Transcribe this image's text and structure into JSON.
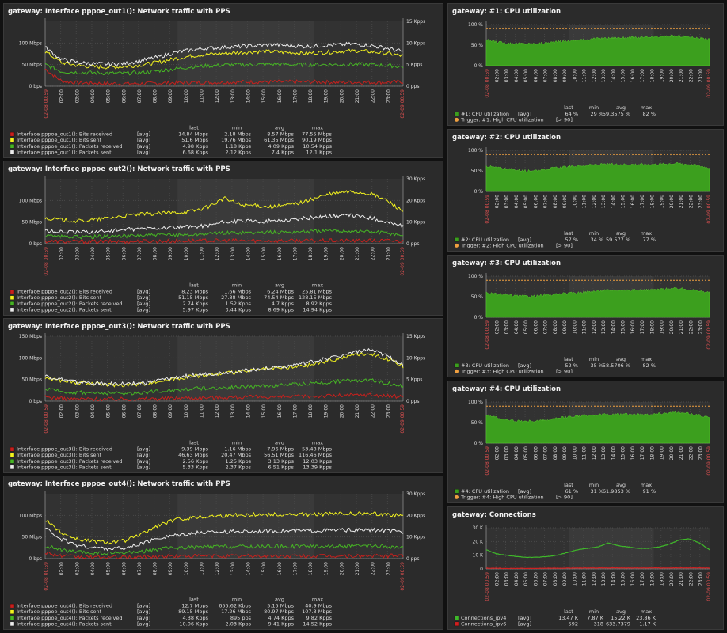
{
  "colors": {
    "received": "#c8201d",
    "sent": "#f2f21e",
    "packets_received": "#46b424",
    "packets_sent": "#ececec",
    "cpu": "#3c9f1e",
    "trigger": "#f0a040",
    "ipv4": "#3fb82a",
    "ipv6": "#d02020",
    "time_edge": "#e05050"
  },
  "x_ticks": [
    "02:00",
    "03:00",
    "04:00",
    "05:00",
    "06:00",
    "07:00",
    "08:00",
    "09:00",
    "10:00",
    "11:00",
    "12:00",
    "13:00",
    "14:00",
    "15:00",
    "16:00",
    "17:00",
    "18:00",
    "19:00",
    "20:00",
    "21:00",
    "22:00",
    "23:00"
  ],
  "x_start": "02-08 00:59",
  "x_end": "02-09 00:59",
  "stat_headers": [
    "last",
    "min",
    "avg",
    "max"
  ],
  "chart_data": [
    {
      "type": "line",
      "title": "gateway: Interface pppoe_out1(): Network traffic with PPS",
      "y_left_ticks": [
        "0 bps",
        "50 Mbps",
        "100 Mbps"
      ],
      "y_left_max": 150,
      "y_right_ticks": [
        "0 pps",
        "5 Kpps",
        "10 Kpps",
        "15 Kpps"
      ],
      "y_right_max": 15,
      "series": [
        {
          "name": "Interface pppoe_out1(): Bits received",
          "func": "[avg]",
          "last": "14.84 Mbps",
          "min": "2.18 Mbps",
          "avg": "8.57 Mbps",
          "max": "77.55 Mbps",
          "axis": "left",
          "values": [
            40,
            12,
            8,
            7,
            6,
            6,
            6,
            7,
            8,
            9,
            9,
            9,
            10,
            10,
            10,
            10,
            10,
            10,
            9,
            9,
            9,
            9,
            10
          ]
        },
        {
          "name": "Interface pppoe_out1(): Bits sent",
          "func": "[avg]",
          "last": "51.6 Mbps",
          "min": "19.76 Mbps",
          "avg": "61.35 Mbps",
          "max": "90.19 Mbps",
          "axis": "left",
          "values": [
            80,
            55,
            48,
            45,
            44,
            46,
            50,
            56,
            64,
            70,
            74,
            76,
            78,
            80,
            80,
            78,
            76,
            78,
            80,
            82,
            80,
            76,
            70
          ]
        },
        {
          "name": "Interface pppoe_out1(): Packets received",
          "func": "[avg]",
          "last": "4.98 Kpps",
          "min": "1.18 Kpps",
          "avg": "4.09 Kpps",
          "max": "10.54 Kpps",
          "axis": "right",
          "values": [
            5,
            3.4,
            3.2,
            3.1,
            3,
            3,
            3.2,
            3.6,
            4,
            4.5,
            4.7,
            4.9,
            5,
            5,
            5.1,
            5,
            5,
            5,
            5,
            5.1,
            5,
            4.8,
            4.5
          ]
        },
        {
          "name": "Interface pppoe_out1(): Packets sent",
          "func": "[avg]",
          "last": "6.68 Kpps",
          "min": "2.12 Kpps",
          "avg": "7.4 Kpps",
          "max": "12.1 Kpps",
          "axis": "right",
          "values": [
            9,
            6.2,
            5.5,
            5.2,
            5.1,
            5.3,
            6,
            6.8,
            7.8,
            8.4,
            8.8,
            9,
            9.2,
            9.4,
            9.6,
            9.4,
            9.2,
            9.4,
            9.6,
            9.8,
            9.4,
            8.8,
            8
          ]
        }
      ]
    },
    {
      "type": "line",
      "title": "gateway: Interface pppoe_out2(): Network traffic with PPS",
      "y_left_ticks": [
        "0 bps",
        "50 Mbps",
        "100 Mbps"
      ],
      "y_left_max": 150,
      "y_right_ticks": [
        "0 pps",
        "10 Kpps",
        "20 Kpps",
        "30 Kpps"
      ],
      "y_right_max": 30,
      "series": [
        {
          "name": "Interface pppoe_out2(): Bits received",
          "func": "[avg]",
          "last": "8.23 Mbps",
          "min": "1.66 Mbps",
          "avg": "6.24 Mbps",
          "max": "25.81 Mbps",
          "axis": "left",
          "values": [
            6,
            5,
            5,
            5,
            5,
            5,
            6,
            6,
            6,
            7,
            7,
            7,
            7,
            7,
            7,
            7,
            7,
            7,
            7,
            7,
            7,
            7,
            6
          ]
        },
        {
          "name": "Interface pppoe_out2(): Bits sent",
          "func": "[avg]",
          "last": "51.15 Mbps",
          "min": "27.88 Mbps",
          "avg": "74.54 Mbps",
          "max": "128.15 Mbps",
          "axis": "left",
          "values": [
            60,
            55,
            52,
            55,
            60,
            65,
            68,
            70,
            72,
            75,
            85,
            105,
            90,
            88,
            85,
            90,
            98,
            110,
            118,
            120,
            115,
            100,
            75
          ]
        },
        {
          "name": "Interface pppoe_out2(): Packets received",
          "func": "[avg]",
          "last": "2.74 Kpps",
          "min": "1.52 Kpps",
          "avg": "4.7 Kpps",
          "max": "8.92 Kpps",
          "axis": "right",
          "values": [
            3.5,
            3.2,
            3.1,
            3.2,
            3.4,
            3.6,
            3.8,
            4,
            4.1,
            4.2,
            4.6,
            5,
            5.2,
            5.1,
            5.2,
            5.4,
            5.6,
            5.8,
            6,
            5.9,
            5.6,
            5,
            4
          ]
        },
        {
          "name": "Interface pppoe_out2(): Packets sent",
          "func": "[avg]",
          "last": "5.97 Kpps",
          "min": "3.44 Kpps",
          "avg": "8.69 Kpps",
          "max": "14.94 Kpps",
          "axis": "right",
          "values": [
            6,
            5.5,
            5.3,
            5.5,
            6,
            6.5,
            7,
            7.3,
            7.5,
            7.8,
            8.5,
            10,
            10.5,
            10.3,
            10.5,
            11,
            11.8,
            12.5,
            13,
            13,
            12,
            10,
            8
          ]
        }
      ]
    },
    {
      "type": "line",
      "title": "gateway: Interface pppoe_out3(): Network traffic with PPS",
      "y_left_ticks": [
        "0 bps",
        "50 Mbps",
        "100 Mbps",
        "150 Mbps"
      ],
      "y_left_max": 150,
      "y_right_ticks": [
        "0 pps",
        "5 Kpps",
        "10 Kpps",
        "15 Kpps"
      ],
      "y_right_max": 15,
      "series": [
        {
          "name": "Interface pppoe_out3(): Bits received",
          "func": "[avg]",
          "last": "9.39 Mbps",
          "min": "1.16 Mbps",
          "avg": "7.96 Mbps",
          "max": "53.48 Mbps",
          "axis": "left",
          "values": [
            10,
            6,
            5,
            5,
            5,
            5,
            5,
            6,
            7,
            8,
            8,
            9,
            9,
            10,
            10,
            10,
            11,
            12,
            13,
            14,
            15,
            12,
            10
          ]
        },
        {
          "name": "Interface pppoe_out3(): Bits sent",
          "func": "[avg]",
          "last": "46.63 Mbps",
          "min": "20.47 Mbps",
          "avg": "56.51 Mbps",
          "max": "116.46 Mbps",
          "axis": "left",
          "values": [
            55,
            48,
            42,
            40,
            38,
            38,
            40,
            46,
            52,
            58,
            60,
            64,
            68,
            72,
            75,
            78,
            82,
            90,
            98,
            108,
            110,
            98,
            80
          ]
        },
        {
          "name": "Interface pppoe_out3(): Packets received",
          "func": "[avg]",
          "last": "2.56 Kpps",
          "min": "1.25 Kpps",
          "avg": "3.13 Kpps",
          "max": "12.03 Kpps",
          "axis": "right",
          "values": [
            2.8,
            2.2,
            2,
            1.9,
            1.8,
            1.8,
            2,
            2.3,
            2.6,
            2.9,
            3,
            3.1,
            3.3,
            3.4,
            3.6,
            3.8,
            4,
            4.3,
            4.6,
            4.8,
            5,
            4.2,
            3.4
          ]
        },
        {
          "name": "Interface pppoe_out3(): Packets sent",
          "func": "[avg]",
          "last": "5.33 Kpps",
          "min": "2.37 Kpps",
          "avg": "6.51 Kpps",
          "max": "13.39 Kpps",
          "axis": "right",
          "values": [
            5.8,
            5,
            4.4,
            4.2,
            4,
            4,
            4.2,
            4.8,
            5.4,
            6,
            6.2,
            6.6,
            7,
            7.4,
            7.8,
            8.2,
            8.8,
            9.6,
            10.4,
            11.4,
            11.8,
            10.4,
            8.4
          ]
        }
      ]
    },
    {
      "type": "line",
      "title": "gateway: Interface pppoe_out4(): Network traffic with PPS",
      "y_left_ticks": [
        "0 bps",
        "50 Mbps",
        "100 Mbps"
      ],
      "y_left_max": 150,
      "y_right_ticks": [
        "0 pps",
        "10 Kpps",
        "20 Kpps",
        "30 Kpps"
      ],
      "y_right_max": 30,
      "series": [
        {
          "name": "Interface pppoe_out4(): Bits received",
          "func": "[avg]",
          "last": "12.7 Mbps",
          "min": "655.62 Kbps",
          "avg": "5.15 Mbps",
          "max": "40.9 Mbps",
          "axis": "left",
          "values": [
            15,
            6,
            4,
            3,
            3,
            3,
            4,
            5,
            6,
            6,
            6,
            6,
            6,
            6,
            6,
            6,
            6,
            6,
            6,
            6,
            6,
            6,
            8
          ]
        },
        {
          "name": "Interface pppoe_out4(): Bits sent",
          "func": "[avg]",
          "last": "89.15 Mbps",
          "min": "17.26 Mbps",
          "avg": "80.97 Mbps",
          "max": "107.3 Mbps",
          "axis": "left",
          "values": [
            90,
            60,
            45,
            40,
            38,
            42,
            58,
            78,
            90,
            95,
            98,
            100,
            101,
            102,
            102,
            102,
            102,
            103,
            104,
            104,
            104,
            103,
            98
          ]
        },
        {
          "name": "Interface pppoe_out4(): Packets received",
          "func": "[avg]",
          "last": "4.38 Kpps",
          "min": "895 pps",
          "avg": "4.74 Kpps",
          "max": "9.82 Kpps",
          "axis": "right",
          "values": [
            6,
            4,
            3,
            2.5,
            2.4,
            2.6,
            3.4,
            4.4,
            5,
            5.3,
            5.5,
            5.6,
            5.6,
            5.6,
            5.7,
            5.7,
            5.7,
            5.8,
            5.8,
            5.8,
            5.8,
            5.6,
            5
          ]
        },
        {
          "name": "Interface pppoe_out4(): Packets sent",
          "func": "[avg]",
          "last": "10.06 Kpps",
          "min": "2.03 Kpps",
          "avg": "9.41 Kpps",
          "max": "14.52 Kpps",
          "axis": "right",
          "values": [
            14,
            9,
            6,
            5,
            4.6,
            5,
            7,
            9.5,
            11,
            11.8,
            12.2,
            12.5,
            12.6,
            12.7,
            12.8,
            12.8,
            12.9,
            13,
            13.2,
            13.2,
            13.2,
            13,
            12
          ]
        }
      ]
    },
    {
      "type": "area",
      "title": "gateway: #1: CPU utilization",
      "y_ticks": [
        "0 %",
        "50 %",
        "100 %"
      ],
      "y_max": 100,
      "threshold": 90,
      "series": [
        {
          "name": "#1: CPU utilization",
          "func": "[avg]",
          "last": "64 %",
          "min": "29 %",
          "avg": "59.3575 %",
          "max": "82 %",
          "values": [
            62,
            58,
            55,
            54,
            53,
            54,
            56,
            58,
            60,
            62,
            64,
            66,
            67,
            68,
            68,
            68,
            69,
            70,
            72,
            72,
            70,
            67,
            64
          ]
        }
      ],
      "trigger": {
        "name": "Trigger: #1: High CPU utilization",
        "cond": "[> 90]"
      }
    },
    {
      "type": "area",
      "title": "gateway: #2: CPU utilization",
      "y_ticks": [
        "0 %",
        "50 %",
        "100 %"
      ],
      "y_max": 100,
      "threshold": 90,
      "series": [
        {
          "name": "#2: CPU utilization",
          "func": "[avg]",
          "last": "57 %",
          "min": "34 %",
          "avg": "59.577 %",
          "max": "77 %",
          "values": [
            62,
            58,
            55,
            52,
            50,
            52,
            55,
            58,
            60,
            62,
            64,
            65,
            66,
            66,
            66,
            66,
            66,
            66,
            68,
            68,
            66,
            62,
            58
          ]
        }
      ],
      "trigger": {
        "name": "Trigger: #2: High CPU utilization",
        "cond": "[> 90]"
      }
    },
    {
      "type": "area",
      "title": "gateway: #3: CPU utilization",
      "y_ticks": [
        "0 %",
        "50 %",
        "100 %"
      ],
      "y_max": 100,
      "threshold": 90,
      "series": [
        {
          "name": "#3: CPU utilization",
          "func": "[avg]",
          "last": "52 %",
          "min": "35 %",
          "avg": "58.5706 %",
          "max": "82 %",
          "values": [
            60,
            56,
            54,
            52,
            51,
            52,
            54,
            56,
            58,
            60,
            62,
            64,
            66,
            66,
            66,
            66,
            67,
            68,
            70,
            70,
            68,
            64,
            60
          ]
        }
      ],
      "trigger": {
        "name": "Trigger: #3: High CPU utilization",
        "cond": "[> 90]"
      }
    },
    {
      "type": "area",
      "title": "gateway: #4: CPU utilization",
      "y_ticks": [
        "0 %",
        "50 %",
        "100 %"
      ],
      "y_max": 100,
      "threshold": 90,
      "series": [
        {
          "name": "#4: CPU utilization",
          "func": "[avg]",
          "last": "61 %",
          "min": "31 %",
          "avg": "61.9853 %",
          "max": "91 %",
          "values": [
            70,
            62,
            56,
            54,
            53,
            54,
            56,
            60,
            64,
            66,
            68,
            69,
            70,
            70,
            70,
            70,
            70,
            72,
            74,
            74,
            72,
            68,
            62
          ]
        }
      ],
      "trigger": {
        "name": "Trigger: #4: High CPU utilization",
        "cond": "[> 90]"
      }
    },
    {
      "type": "line",
      "title": "gateway: Connections",
      "y_ticks": [
        "0",
        "10 K",
        "20 K",
        "30 K"
      ],
      "y_max": 30,
      "series": [
        {
          "name": "Connections_ipv4",
          "func": "[avg]",
          "last": "13.47 K",
          "min": "7.87 K",
          "avg": "15.22 K",
          "max": "23.86 K",
          "values": [
            14,
            11,
            10,
            9,
            8.5,
            8.5,
            9,
            10,
            12,
            14,
            15,
            16,
            19,
            17,
            16,
            15,
            15,
            16,
            18,
            21,
            22,
            19,
            14
          ]
        },
        {
          "name": "Connections_ipv6",
          "func": "[avg]",
          "last": "592",
          "min": "318",
          "avg": "633.7379",
          "max": "1.17 K",
          "values": [
            0.6,
            0.5,
            0.4,
            0.4,
            0.4,
            0.4,
            0.5,
            0.5,
            0.6,
            0.6,
            0.7,
            0.7,
            0.7,
            0.7,
            0.7,
            0.7,
            0.7,
            0.7,
            0.7,
            0.8,
            0.8,
            0.7,
            0.6
          ]
        }
      ]
    }
  ]
}
